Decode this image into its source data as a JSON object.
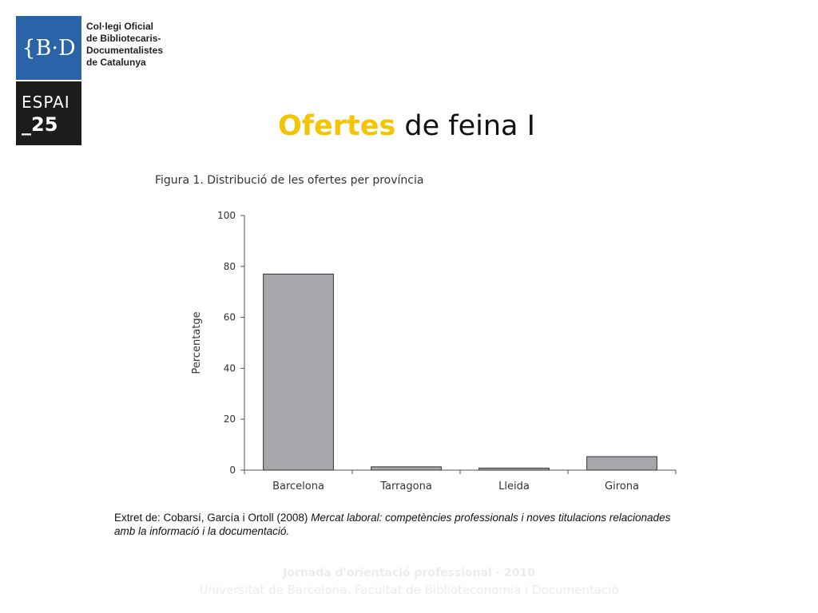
{
  "logo": {
    "mark": "{B·D",
    "org_lines": [
      "Col·legi Oficial",
      "de Bibliotecaris-",
      "Documentalistes",
      "de Catalunya"
    ]
  },
  "espai": {
    "line1": "ESPAI",
    "line2": "_25"
  },
  "slide": {
    "title_accent": "Ofertes",
    "title_rest": "de feina I"
  },
  "figure_caption": "Figura 1. Distribució de les ofertes per província",
  "chart_data": {
    "type": "bar",
    "categories": [
      "Barcelona",
      "Tarragona",
      "Lleida",
      "Girona"
    ],
    "values": [
      77,
      1.3,
      0.8,
      5.3
    ],
    "xlabel": "",
    "ylabel": "Percentatge",
    "ylim": [
      0,
      100
    ],
    "yticks": [
      0,
      20,
      40,
      60,
      80,
      100
    ],
    "grid": false,
    "bar_color": "#a6a7ab"
  },
  "source": {
    "plain": "Extret de: Cobarsí, García i Ortoll (2008) ",
    "italic": "Mercat laboral: competències professionals i noves titulacions relacionades amb la informació i la documentació."
  },
  "footer": {
    "line1": "Jornada d'orientació professional · 2010",
    "line2": "Universitat de Barcelona. Facultat de Biblioteconomia i Documentació"
  },
  "colors": {
    "brand_blue": "#2a63a8",
    "accent_yellow": "#f5c400",
    "dark": "#1c1c1c"
  }
}
